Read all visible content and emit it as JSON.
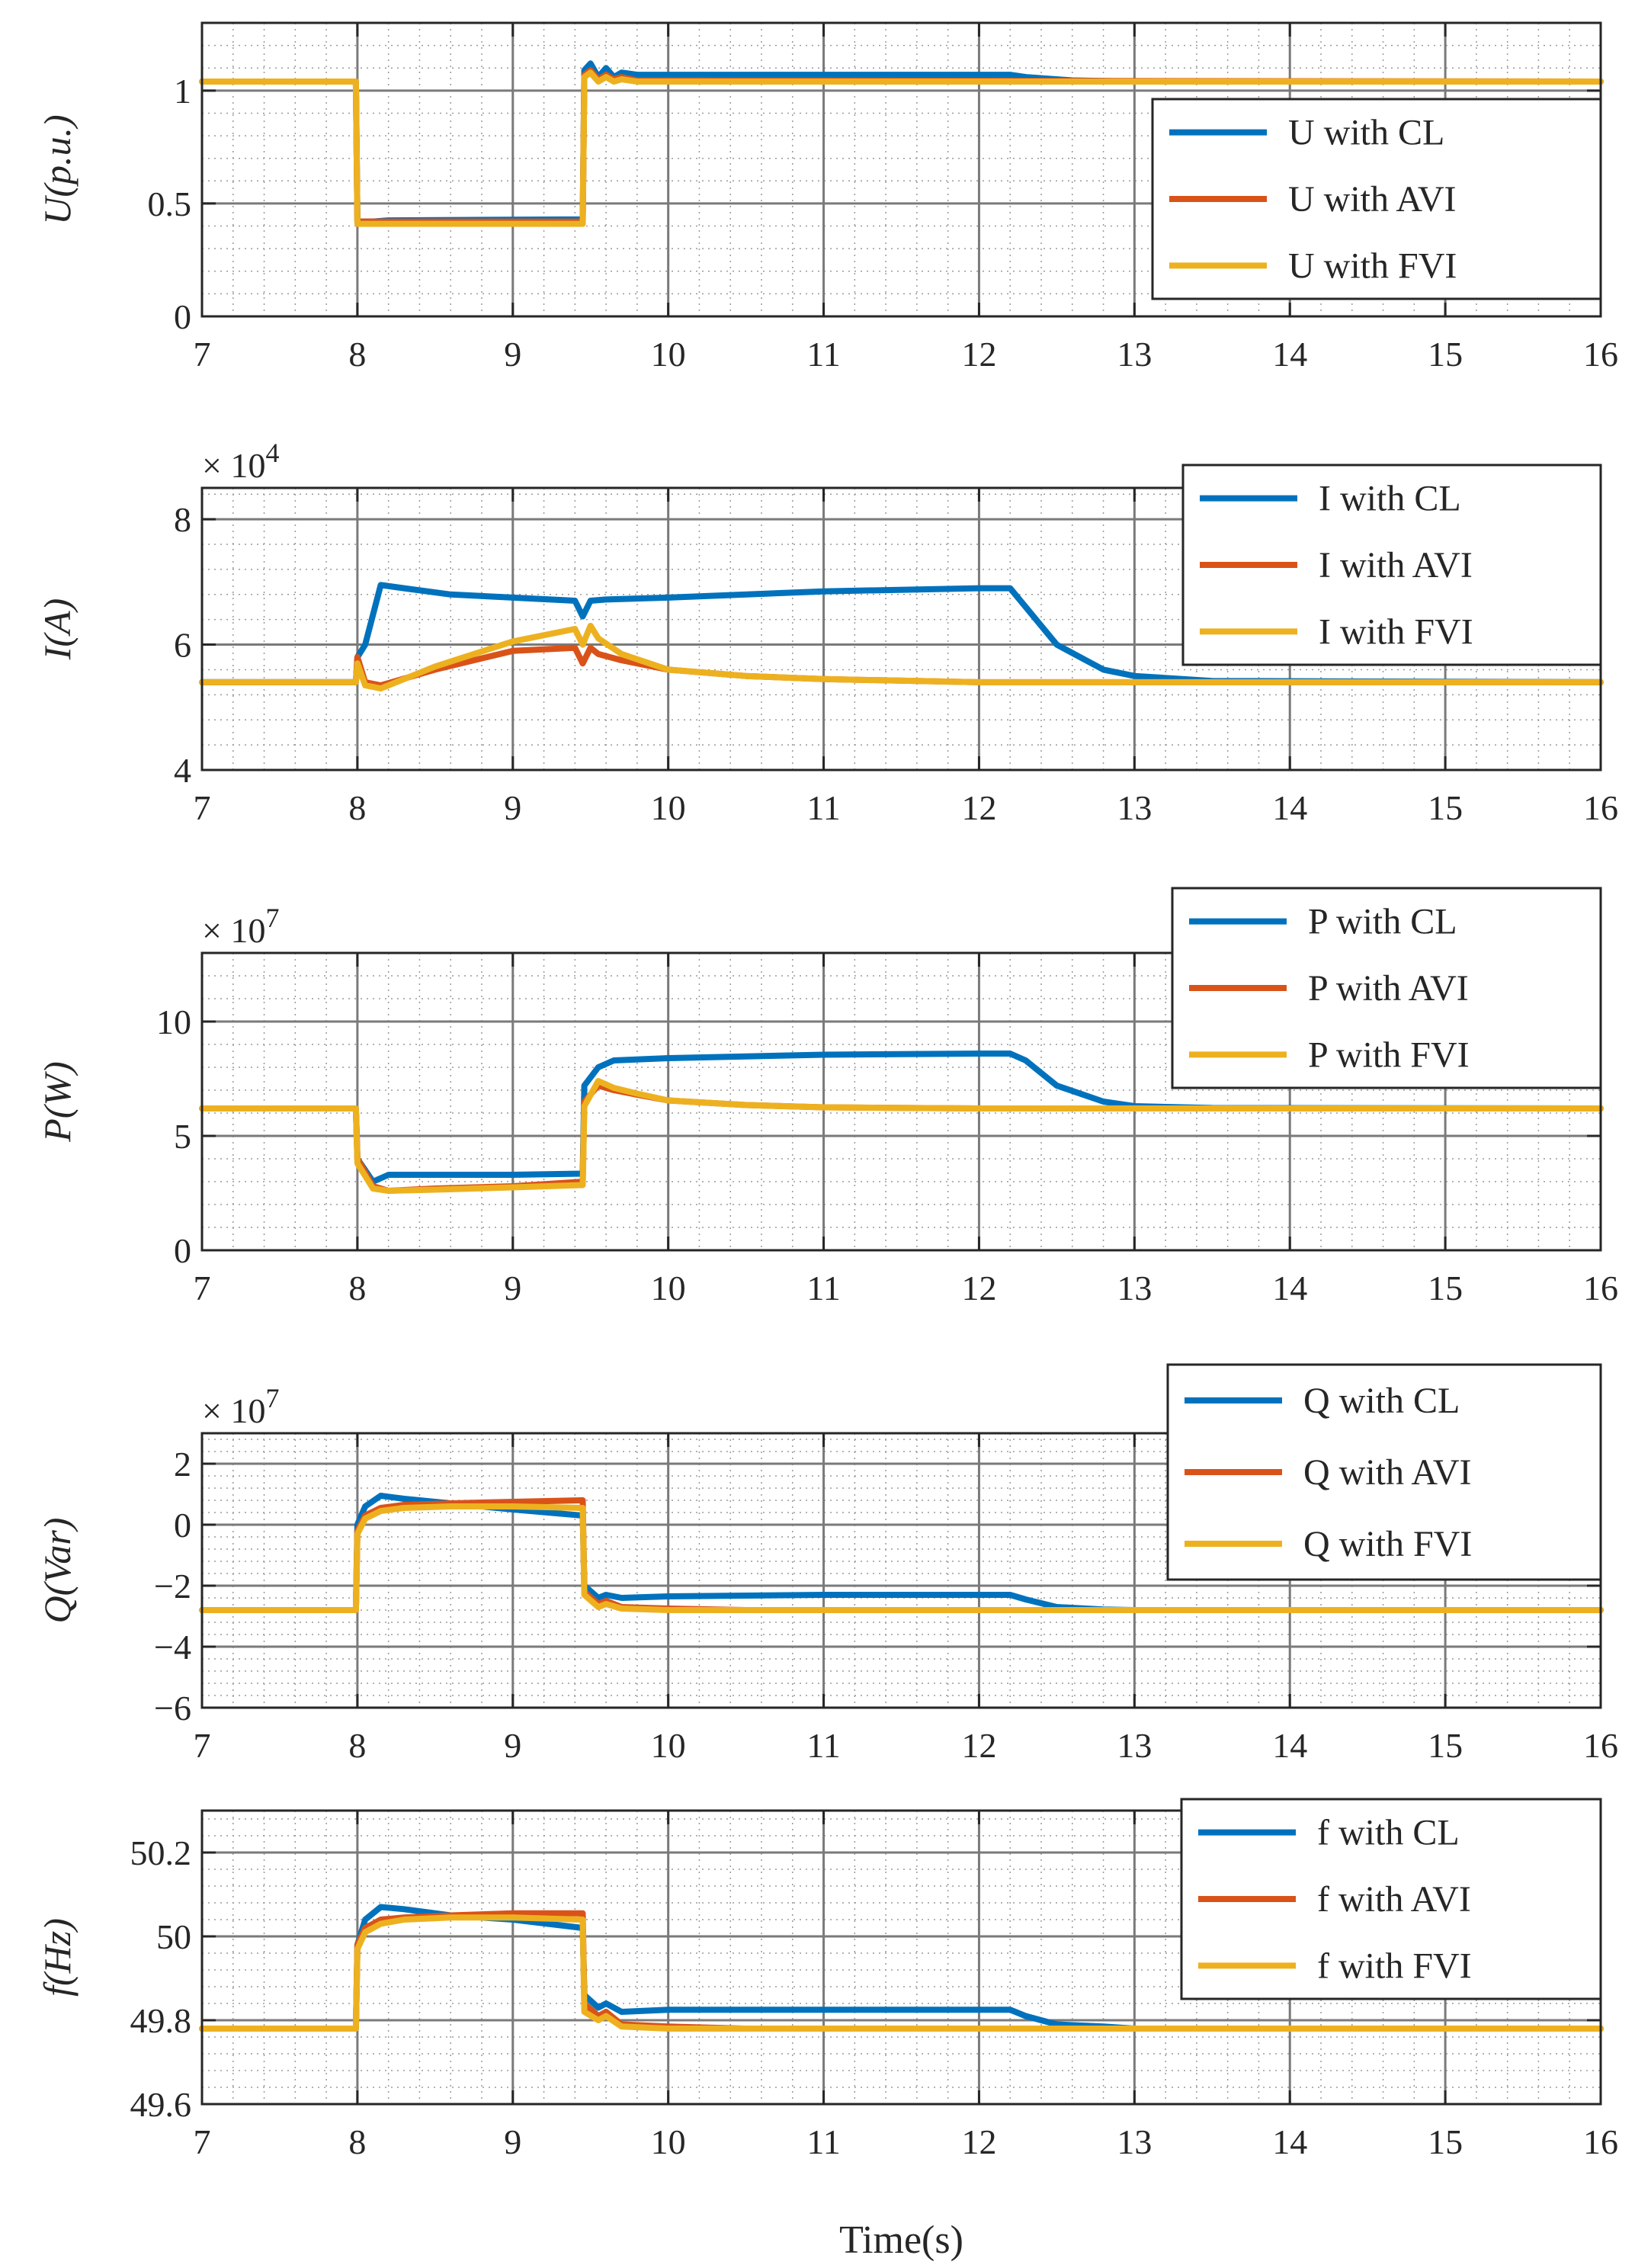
{
  "chart_data": [
    {
      "type": "line",
      "id": "U",
      "ylabel": "U(p.u.)",
      "xlabel": "",
      "exponent": "",
      "xlim": [
        7,
        16
      ],
      "ylim": [
        0,
        1.3
      ],
      "yticks": [
        0,
        0.5,
        1
      ],
      "ytick_labels": [
        "0",
        "0.5",
        "1"
      ],
      "xticks": [
        7,
        8,
        9,
        10,
        11,
        12,
        13,
        14,
        15,
        16
      ],
      "xtick_labels": [
        "7",
        "8",
        "9",
        "10",
        "11",
        "12",
        "13",
        "14",
        "15",
        "16"
      ],
      "grid": true,
      "legend": "right",
      "series": [
        {
          "name": "U with CL",
          "color": "#0072BD",
          "x": [
            7,
            7.99,
            8.0,
            8.1,
            8.2,
            9.45,
            9.46,
            9.5,
            9.55,
            9.6,
            9.65,
            9.7,
            9.8,
            10,
            11,
            12,
            12.2,
            12.3,
            12.6,
            13,
            16
          ],
          "y": [
            1.04,
            1.04,
            0.42,
            0.42,
            0.425,
            0.43,
            1.09,
            1.12,
            1.06,
            1.1,
            1.06,
            1.08,
            1.07,
            1.07,
            1.07,
            1.07,
            1.07,
            1.06,
            1.045,
            1.04,
            1.04
          ]
        },
        {
          "name": "U with AVI",
          "color": "#D95319",
          "x": [
            7,
            7.99,
            8.0,
            9.45,
            9.46,
            9.5,
            9.55,
            9.6,
            9.65,
            9.7,
            9.8,
            16
          ],
          "y": [
            1.04,
            1.04,
            0.42,
            0.42,
            1.07,
            1.09,
            1.05,
            1.07,
            1.05,
            1.06,
            1.045,
            1.04
          ]
        },
        {
          "name": "U with FVI",
          "color": "#EDB120",
          "x": [
            7,
            7.99,
            8.0,
            9.45,
            9.46,
            9.5,
            9.55,
            9.6,
            9.65,
            9.7,
            9.8,
            16
          ],
          "y": [
            1.04,
            1.04,
            0.41,
            0.41,
            1.06,
            1.08,
            1.04,
            1.06,
            1.04,
            1.05,
            1.04,
            1.04
          ]
        }
      ]
    },
    {
      "type": "line",
      "id": "I",
      "ylabel": "I(A)",
      "xlabel": "",
      "exponent": "× 10",
      "exponent_power": "4",
      "xlim": [
        7,
        16
      ],
      "ylim": [
        4,
        8.5
      ],
      "yticks": [
        4,
        6,
        8
      ],
      "ytick_labels": [
        "4",
        "6",
        "8"
      ],
      "xticks": [
        7,
        8,
        9,
        10,
        11,
        12,
        13,
        14,
        15,
        16
      ],
      "xtick_labels": [
        "7",
        "8",
        "9",
        "10",
        "11",
        "12",
        "13",
        "14",
        "15",
        "16"
      ],
      "grid": true,
      "legend": "top-right",
      "series": [
        {
          "name": "I with CL",
          "color": "#0072BD",
          "x": [
            7,
            7.99,
            8.0,
            8.05,
            8.15,
            8.3,
            8.6,
            9.0,
            9.4,
            9.45,
            9.5,
            9.6,
            10,
            11,
            12,
            12.2,
            12.3,
            12.5,
            12.8,
            13,
            13.5,
            16
          ],
          "y": [
            5.4,
            5.4,
            5.8,
            6.0,
            6.95,
            6.9,
            6.8,
            6.75,
            6.7,
            6.45,
            6.7,
            6.72,
            6.75,
            6.85,
            6.9,
            6.9,
            6.6,
            6.0,
            5.6,
            5.5,
            5.42,
            5.4
          ]
        },
        {
          "name": "I with AVI",
          "color": "#D95319",
          "x": [
            7,
            7.99,
            8.0,
            8.05,
            8.15,
            8.5,
            9.0,
            9.4,
            9.45,
            9.5,
            9.55,
            9.7,
            10,
            10.5,
            11,
            12,
            16
          ],
          "y": [
            5.4,
            5.4,
            5.8,
            5.4,
            5.35,
            5.6,
            5.9,
            5.95,
            5.7,
            5.95,
            5.85,
            5.75,
            5.6,
            5.5,
            5.45,
            5.4,
            5.4
          ]
        },
        {
          "name": "I with FVI",
          "color": "#EDB120",
          "x": [
            7,
            7.99,
            8.0,
            8.05,
            8.15,
            8.5,
            9.0,
            9.4,
            9.45,
            9.5,
            9.55,
            9.7,
            10,
            10.5,
            11,
            12,
            16
          ],
          "y": [
            5.4,
            5.4,
            5.7,
            5.35,
            5.3,
            5.65,
            6.05,
            6.25,
            6.0,
            6.3,
            6.1,
            5.85,
            5.6,
            5.5,
            5.45,
            5.4,
            5.4
          ]
        }
      ]
    },
    {
      "type": "line",
      "id": "P",
      "ylabel": "P(W)",
      "xlabel": "",
      "exponent": "× 10",
      "exponent_power": "7",
      "xlim": [
        7,
        16
      ],
      "ylim": [
        0,
        13
      ],
      "yticks": [
        0,
        5,
        10
      ],
      "ytick_labels": [
        "0",
        "5",
        "10"
      ],
      "xticks": [
        7,
        8,
        9,
        10,
        11,
        12,
        13,
        14,
        15,
        16
      ],
      "xtick_labels": [
        "7",
        "8",
        "9",
        "10",
        "11",
        "12",
        "13",
        "14",
        "15",
        "16"
      ],
      "grid": true,
      "legend": "top-right",
      "series": [
        {
          "name": "P with CL",
          "color": "#0072BD",
          "x": [
            7,
            7.99,
            8.0,
            8.1,
            8.2,
            8.5,
            9.0,
            9.45,
            9.46,
            9.55,
            9.65,
            10,
            11,
            12,
            12.2,
            12.3,
            12.5,
            12.8,
            13,
            13.5,
            16
          ],
          "y": [
            6.2,
            6.2,
            4.0,
            3.0,
            3.3,
            3.3,
            3.3,
            3.35,
            7.2,
            8.0,
            8.3,
            8.4,
            8.55,
            8.6,
            8.6,
            8.3,
            7.2,
            6.5,
            6.3,
            6.22,
            6.2
          ]
        },
        {
          "name": "P with AVI",
          "color": "#D95319",
          "x": [
            7,
            7.99,
            8.0,
            8.1,
            8.2,
            8.5,
            9.0,
            9.45,
            9.46,
            9.55,
            9.65,
            9.8,
            10,
            10.5,
            11,
            12,
            16
          ],
          "y": [
            6.2,
            6.2,
            4.0,
            2.8,
            2.6,
            2.7,
            2.8,
            3.0,
            6.5,
            7.2,
            7.0,
            6.8,
            6.55,
            6.35,
            6.25,
            6.2,
            6.2
          ]
        },
        {
          "name": "P with FVI",
          "color": "#EDB120",
          "x": [
            7,
            7.99,
            8.0,
            8.1,
            8.2,
            8.5,
            9.0,
            9.45,
            9.46,
            9.55,
            9.65,
            9.8,
            10,
            10.5,
            11,
            12,
            16
          ],
          "y": [
            6.2,
            6.2,
            3.8,
            2.7,
            2.6,
            2.65,
            2.75,
            2.85,
            6.3,
            7.4,
            7.1,
            6.85,
            6.55,
            6.35,
            6.25,
            6.2,
            6.2
          ]
        }
      ]
    },
    {
      "type": "line",
      "id": "Q",
      "ylabel": "Q(Var)",
      "xlabel": "",
      "exponent": "× 10",
      "exponent_power": "7",
      "xlim": [
        7,
        16
      ],
      "ylim": [
        -6,
        3
      ],
      "yticks": [
        -6,
        -4,
        -2,
        0,
        2
      ],
      "ytick_labels": [
        "−6",
        "−4",
        "−2",
        "0",
        "2"
      ],
      "xticks": [
        7,
        8,
        9,
        10,
        11,
        12,
        13,
        14,
        15,
        16
      ],
      "xtick_labels": [
        "7",
        "8",
        "9",
        "10",
        "11",
        "12",
        "13",
        "14",
        "15",
        "16"
      ],
      "grid": true,
      "legend": "top-right",
      "series": [
        {
          "name": "Q with CL",
          "color": "#0072BD",
          "x": [
            7,
            7.99,
            8.0,
            8.05,
            8.15,
            8.3,
            8.6,
            9.0,
            9.45,
            9.46,
            9.55,
            9.6,
            9.7,
            10,
            11,
            12,
            12.2,
            12.3,
            12.5,
            12.8,
            13,
            13.5,
            16
          ],
          "y": [
            -2.8,
            -2.8,
            0.0,
            0.6,
            0.95,
            0.85,
            0.7,
            0.5,
            0.3,
            -2.0,
            -2.4,
            -2.3,
            -2.4,
            -2.35,
            -2.3,
            -2.3,
            -2.3,
            -2.45,
            -2.7,
            -2.78,
            -2.8,
            -2.8,
            -2.8
          ]
        },
        {
          "name": "Q with AVI",
          "color": "#D95319",
          "x": [
            7,
            7.99,
            8.0,
            8.05,
            8.15,
            8.3,
            8.6,
            9.0,
            9.45,
            9.46,
            9.55,
            9.6,
            9.7,
            10,
            10.5,
            11,
            16
          ],
          "y": [
            -2.8,
            -2.8,
            -0.2,
            0.3,
            0.55,
            0.65,
            0.7,
            0.75,
            0.8,
            -2.2,
            -2.6,
            -2.5,
            -2.7,
            -2.75,
            -2.8,
            -2.8,
            -2.8
          ]
        },
        {
          "name": "Q with FVI",
          "color": "#EDB120",
          "x": [
            7,
            7.99,
            8.0,
            8.05,
            8.15,
            8.3,
            8.6,
            9.0,
            9.45,
            9.46,
            9.55,
            9.6,
            9.7,
            10,
            10.5,
            11,
            16
          ],
          "y": [
            -2.8,
            -2.8,
            -0.3,
            0.2,
            0.45,
            0.55,
            0.6,
            0.6,
            0.55,
            -2.3,
            -2.7,
            -2.6,
            -2.75,
            -2.8,
            -2.8,
            -2.8,
            -2.8
          ]
        }
      ]
    },
    {
      "type": "line",
      "id": "f",
      "ylabel": "f(Hz)",
      "xlabel": "Time(s)",
      "exponent": "",
      "xlim": [
        7,
        16
      ],
      "ylim": [
        49.6,
        50.3
      ],
      "yticks": [
        49.6,
        49.8,
        50,
        50.2
      ],
      "ytick_labels": [
        "49.6",
        "49.8",
        "50",
        "50.2"
      ],
      "xticks": [
        7,
        8,
        9,
        10,
        11,
        12,
        13,
        14,
        15,
        16
      ],
      "xtick_labels": [
        "7",
        "8",
        "9",
        "10",
        "11",
        "12",
        "13",
        "14",
        "15",
        "16"
      ],
      "grid": true,
      "legend": "top-right",
      "series": [
        {
          "name": "f with CL",
          "color": "#0072BD",
          "x": [
            7,
            7.99,
            8.0,
            8.05,
            8.15,
            8.3,
            8.6,
            9.0,
            9.45,
            9.46,
            9.55,
            9.6,
            9.7,
            10,
            11,
            12,
            12.2,
            12.3,
            12.5,
            12.8,
            13,
            16
          ],
          "y": [
            49.78,
            49.78,
            49.98,
            50.04,
            50.07,
            50.065,
            50.05,
            50.04,
            50.02,
            49.86,
            49.83,
            49.84,
            49.82,
            49.825,
            49.825,
            49.825,
            49.825,
            49.81,
            49.79,
            49.785,
            49.78,
            49.78
          ]
        },
        {
          "name": "f with AVI",
          "color": "#D95319",
          "x": [
            7,
            7.99,
            8.0,
            8.05,
            8.15,
            8.3,
            8.6,
            9.0,
            9.45,
            9.46,
            9.55,
            9.6,
            9.7,
            10,
            10.5,
            16
          ],
          "y": [
            49.78,
            49.78,
            49.98,
            50.02,
            50.04,
            50.045,
            50.05,
            50.055,
            50.055,
            49.84,
            49.81,
            49.82,
            49.79,
            49.785,
            49.78,
            49.78
          ]
        },
        {
          "name": "f with FVI",
          "color": "#EDB120",
          "x": [
            7,
            7.99,
            8.0,
            8.05,
            8.15,
            8.3,
            8.6,
            9.0,
            9.45,
            9.46,
            9.55,
            9.6,
            9.7,
            10,
            10.5,
            16
          ],
          "y": [
            49.78,
            49.78,
            49.97,
            50.01,
            50.03,
            50.04,
            50.045,
            50.045,
            50.04,
            49.82,
            49.8,
            49.81,
            49.785,
            49.78,
            49.78,
            49.78
          ]
        }
      ]
    }
  ]
}
